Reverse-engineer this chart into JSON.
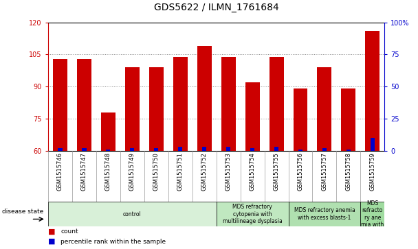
{
  "title": "GDS5622 / ILMN_1761684",
  "samples": [
    "GSM1515746",
    "GSM1515747",
    "GSM1515748",
    "GSM1515749",
    "GSM1515750",
    "GSM1515751",
    "GSM1515752",
    "GSM1515753",
    "GSM1515754",
    "GSM1515755",
    "GSM1515756",
    "GSM1515757",
    "GSM1515758",
    "GSM1515759"
  ],
  "count_values": [
    103,
    103,
    78,
    99,
    99,
    104,
    109,
    104,
    92,
    104,
    89,
    99,
    89,
    116
  ],
  "percentile_values": [
    2,
    2,
    1,
    2,
    2,
    3,
    3,
    3,
    2,
    3,
    1,
    2,
    1,
    10
  ],
  "ylim_left": [
    60,
    120
  ],
  "ylim_right": [
    0,
    100
  ],
  "yticks_left": [
    60,
    75,
    90,
    105,
    120
  ],
  "yticks_right": [
    0,
    25,
    50,
    75,
    100
  ],
  "count_color": "#cc0000",
  "percentile_color": "#0000cc",
  "disease_groups": [
    {
      "label": "control",
      "start": 0,
      "end": 7,
      "color": "#d8f0d8"
    },
    {
      "label": "MDS refractory\ncytopenia with\nmultilineage dysplasia",
      "start": 7,
      "end": 10,
      "color": "#c0e8c0"
    },
    {
      "label": "MDS refractory anemia\nwith excess blasts-1",
      "start": 10,
      "end": 13,
      "color": "#b0e0b0"
    },
    {
      "label": "MDS\nrefracto\nry ane\nmia with",
      "start": 13,
      "end": 14,
      "color": "#a0dca0"
    }
  ],
  "legend_count_label": "count",
  "legend_percentile_label": "percentile rank within the sample",
  "disease_state_label": "disease state",
  "title_fontsize": 10,
  "tick_fontsize": 7,
  "sample_fontsize": 6,
  "disease_fontsize": 5.5,
  "background_color": "#ffffff",
  "plot_bg_color": "#ffffff",
  "grid_color": "#888888",
  "sample_bg_color": "#d4d4d4"
}
